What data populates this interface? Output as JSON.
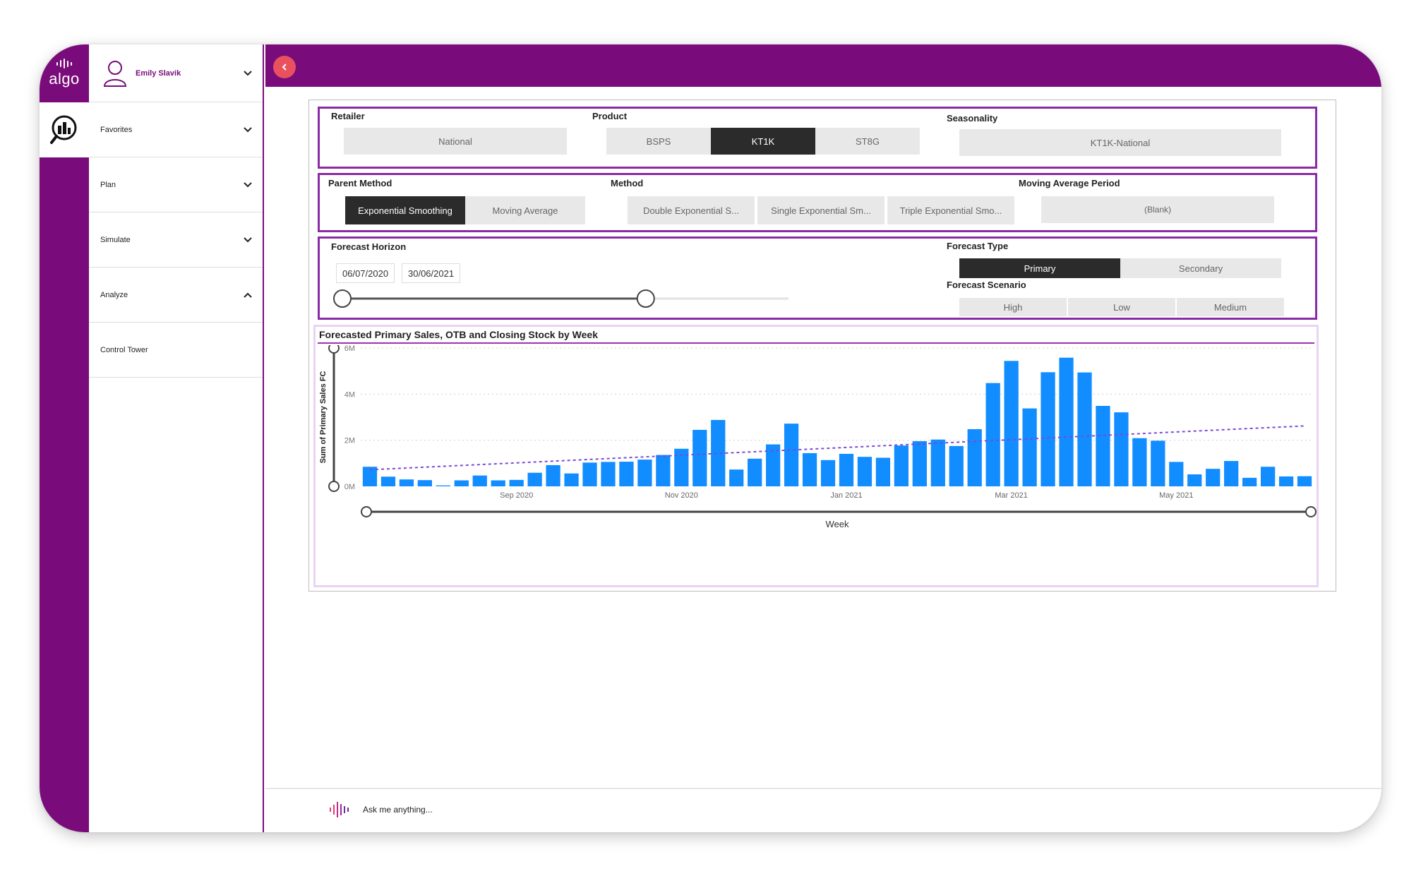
{
  "app": {
    "logo_text": "algo",
    "user_name": "Emily Slavik"
  },
  "nav": {
    "items": [
      {
        "label": "Favorites",
        "chevron": "down"
      },
      {
        "label": "Plan",
        "chevron": "down"
      },
      {
        "label": "Simulate",
        "chevron": "down"
      },
      {
        "label": "Analyze",
        "chevron": "up"
      },
      {
        "label": "Control Tower",
        "chevron": ""
      }
    ]
  },
  "filters": {
    "retailer": {
      "label": "Retailer",
      "value": "National"
    },
    "product": {
      "label": "Product",
      "options": [
        "BSPS",
        "KT1K",
        "ST8G"
      ],
      "selected": "KT1K"
    },
    "seasonality": {
      "label": "Seasonality",
      "value": "KT1K-National"
    },
    "parent_method": {
      "label": "Parent Method",
      "options": [
        "Exponential Smoothing",
        "Moving Average"
      ],
      "selected": "Exponential Smoothing"
    },
    "method": {
      "label": "Method",
      "options": [
        "Double Exponential S...",
        "Single Exponential Sm...",
        "Triple Exponential Smo..."
      ]
    },
    "moving_average_period": {
      "label": "Moving Average Period",
      "value": "(Blank)"
    },
    "forecast_horizon": {
      "label": "Forecast Horizon",
      "start": "06/07/2020",
      "end": "30/06/2021",
      "slider_fraction": 0.68
    },
    "forecast_type": {
      "label": "Forecast Type",
      "options": [
        "Primary",
        "Secondary"
      ],
      "selected": "Primary"
    },
    "forecast_scenario": {
      "label": "Forecast Scenario",
      "options": [
        "High",
        "Low",
        "Medium"
      ]
    }
  },
  "chart_data": {
    "type": "bar",
    "title": "Forecasted Primary Sales, OTB and Closing Stock by Week",
    "xlabel": "Week",
    "ylabel": "Sum of Primary Sales FC",
    "ylim": [
      0,
      6000000
    ],
    "yticks": [
      0,
      2000000,
      4000000,
      6000000
    ],
    "ytick_labels": [
      "0M",
      "2M",
      "4M",
      "6M"
    ],
    "xtick_labels": [
      {
        "label": "Sep 2020",
        "index": 8
      },
      {
        "label": "Nov 2020",
        "index": 17
      },
      {
        "label": "Jan 2021",
        "index": 26
      },
      {
        "label": "Mar 2021",
        "index": 35
      },
      {
        "label": "May 2021",
        "index": 44
      }
    ],
    "grid": true,
    "bar_color": "#118dff",
    "trend_color": "#7b4ad6",
    "values": [
      850000,
      420000,
      300000,
      270000,
      40000,
      260000,
      470000,
      260000,
      280000,
      590000,
      920000,
      560000,
      1030000,
      1060000,
      1070000,
      1160000,
      1360000,
      1630000,
      2450000,
      2880000,
      730000,
      1200000,
      1820000,
      2720000,
      1440000,
      1140000,
      1410000,
      1280000,
      1240000,
      1770000,
      1960000,
      2030000,
      1750000,
      2480000,
      4480000,
      5440000,
      3380000,
      4950000,
      5580000,
      4940000,
      3490000,
      3210000,
      2090000,
      1980000,
      1060000,
      520000,
      760000,
      1100000,
      370000,
      850000,
      430000,
      440000
    ],
    "trend": {
      "start": 720000,
      "end": 2620000
    }
  },
  "assistant": {
    "placeholder": "Ask me anything..."
  }
}
